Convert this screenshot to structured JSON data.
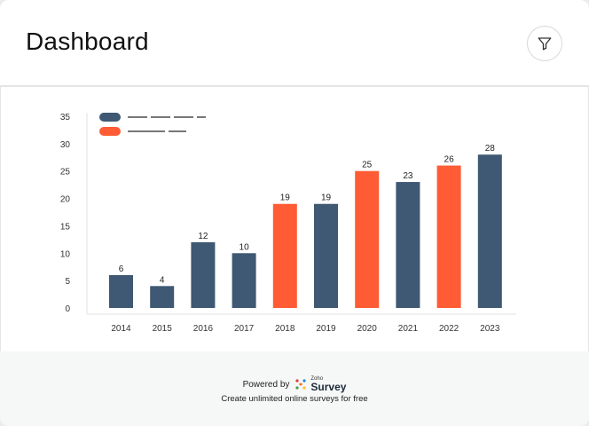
{
  "header": {
    "title": "Dashboard",
    "filter_icon": "filter-icon"
  },
  "colors": {
    "series_a": "#3f5873",
    "series_b": "#ff5b35",
    "axis_text": "#333333",
    "legend_text": "#777777"
  },
  "chart_data": {
    "type": "bar",
    "categories": [
      "2014",
      "2015",
      "2016",
      "2017",
      "2018",
      "2019",
      "2020",
      "2021",
      "2022",
      "2023"
    ],
    "values": [
      6,
      4,
      12,
      10,
      19,
      19,
      25,
      23,
      26,
      28
    ],
    "series_index": [
      0,
      0,
      0,
      0,
      1,
      0,
      1,
      0,
      1,
      0
    ],
    "series": [
      {
        "name": "",
        "color": "#3f5873"
      },
      {
        "name": "",
        "color": "#ff5b35"
      }
    ],
    "yticks": [
      0,
      5,
      10,
      15,
      20,
      25,
      30,
      35
    ],
    "ylim": [
      0,
      35
    ],
    "title": "",
    "xlabel": "",
    "ylabel": "",
    "legend_position": "top-left"
  },
  "footer": {
    "powered_by": "Powered by",
    "brand_small": "Zoho",
    "brand_name": "Survey",
    "tagline": "Create unlimited online surveys for free"
  }
}
